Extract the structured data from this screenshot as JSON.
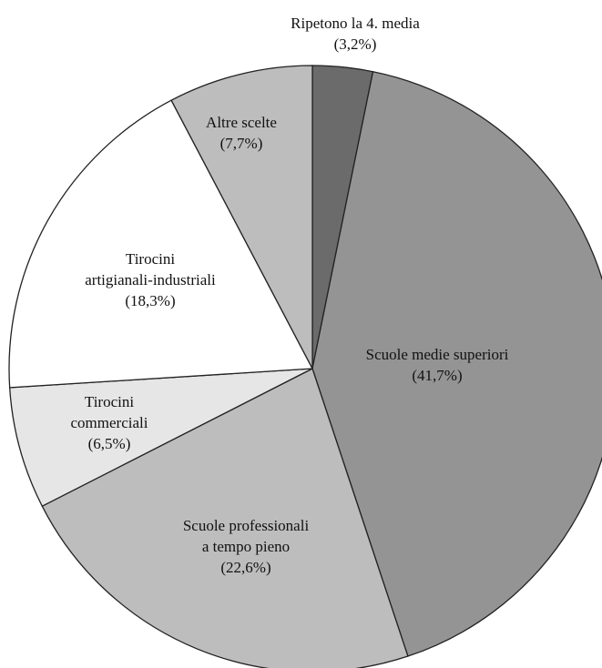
{
  "chart_data": {
    "type": "pie",
    "categories": [
      "Ripetono la 4. media",
      "Scuole medie superiori",
      "Scuole professionali\na tempo pieno",
      "Tirocini\ncommerciali",
      "Tirocini\nartigianali-industriali",
      "Altre scelte"
    ],
    "values": [
      3.2,
      41.7,
      22.6,
      6.5,
      18.3,
      7.7
    ],
    "value_labels": [
      "(3,2%)",
      "(41,7%)",
      "(22,6%)",
      "(6,5%)",
      "(18,3%)",
      "(7,7%)"
    ],
    "colors": [
      "#6b6b6b",
      "#949494",
      "#bdbdbd",
      "#e6e6e6",
      "#ffffff",
      "#bdbdbd"
    ]
  }
}
